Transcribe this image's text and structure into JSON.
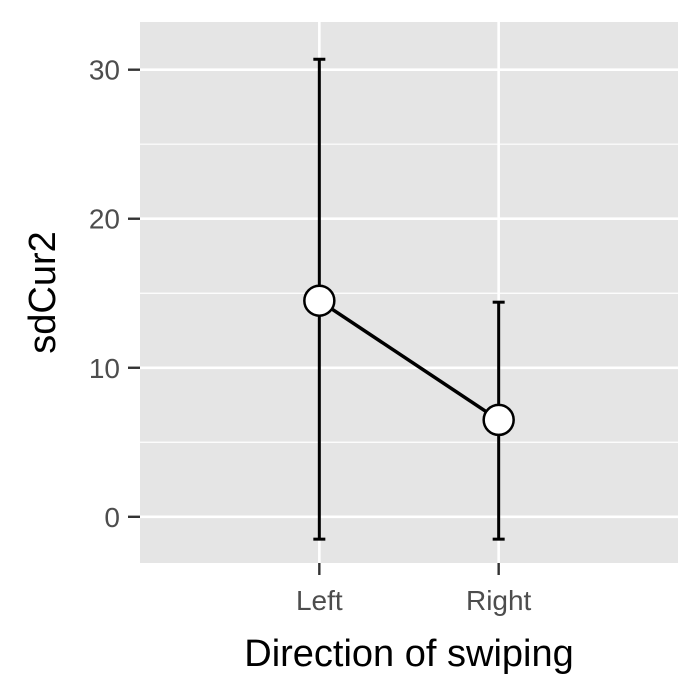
{
  "chart_data": {
    "type": "line",
    "title": "",
    "xlabel": "Direction of swiping",
    "ylabel": "sdCur2",
    "categories": [
      "Left",
      "Right"
    ],
    "series": [
      {
        "values": [
          14.5,
          6.5
        ],
        "lower": [
          -1.5,
          -1.5
        ],
        "upper": [
          30.7,
          14.4
        ]
      }
    ],
    "ylim": [
      -3.1,
      33.2
    ],
    "yticks": [
      0,
      10,
      20,
      30
    ],
    "ytick_labels": [
      "0",
      "10",
      "20",
      "30"
    ],
    "grid": true,
    "legend": "none",
    "colors": {
      "panel_background": "#e5e5e5",
      "grid": "#ffffff",
      "line": "#000000",
      "point_fill": "#ffffff",
      "tick_text": "#4d4d4d",
      "axis_title_text": "#000000"
    }
  }
}
